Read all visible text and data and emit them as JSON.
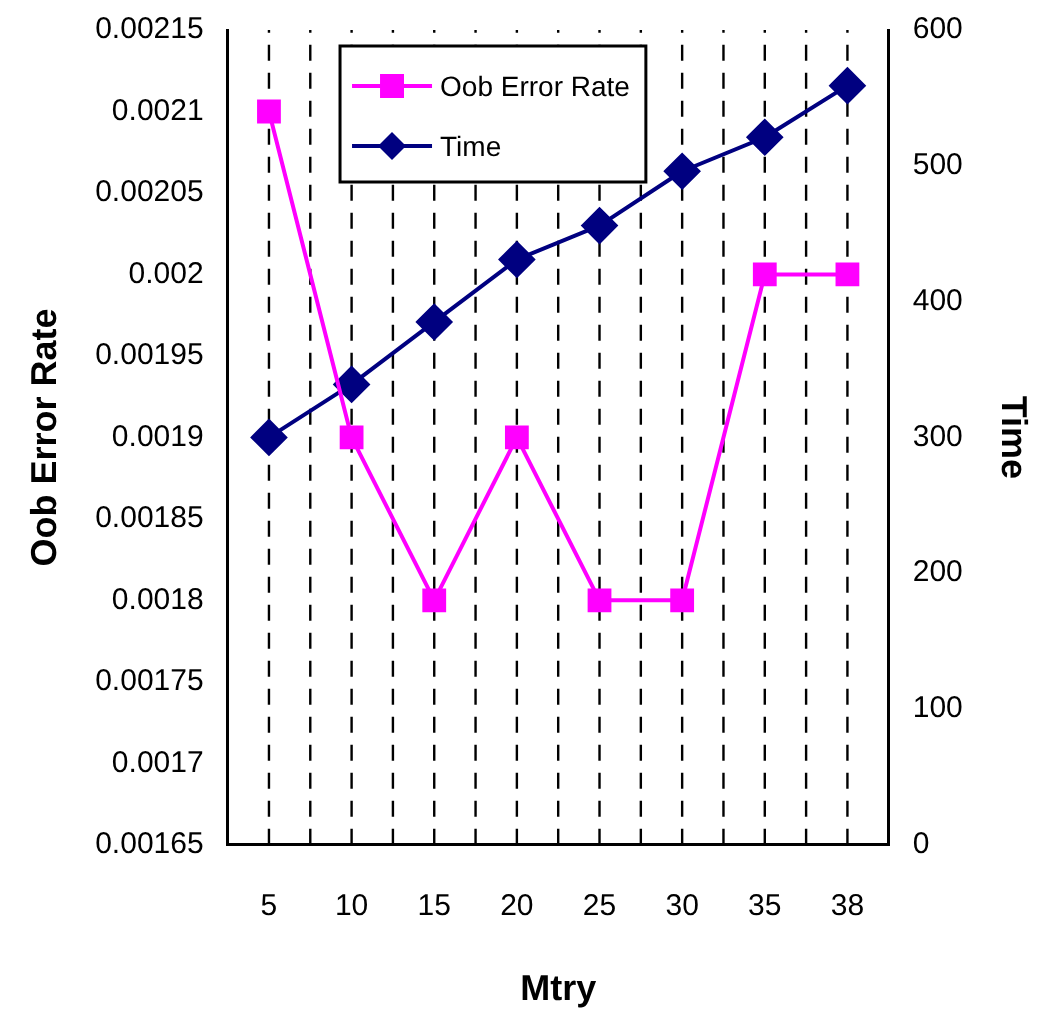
{
  "chart_data": {
    "type": "line",
    "xlabel": "Mtry",
    "ylabel": "Oob Error Rate",
    "y2label": "Time",
    "categories": [
      "5",
      "10",
      "15",
      "20",
      "25",
      "30",
      "35",
      "38"
    ],
    "series": [
      {
        "name": "Oob Error Rate",
        "color": "#ff00ff",
        "marker": "square",
        "values": [
          0.0021,
          0.0019,
          0.0018,
          0.0019,
          0.0018,
          0.0018,
          0.002,
          0.002
        ]
      },
      {
        "name": "Time",
        "color": "#000080",
        "marker": "diamond",
        "axis": "y2",
        "values": [
          300,
          339,
          385,
          431,
          456,
          496,
          521,
          559
        ]
      }
    ],
    "ylim": [
      0.00165,
      0.00215
    ],
    "yticks": [
      0.00165,
      0.0017,
      0.00175,
      0.0018,
      0.00185,
      0.0019,
      0.00195,
      0.002,
      0.00205,
      0.0021,
      0.00215
    ],
    "y2lim": [
      0,
      600
    ],
    "y2ticks": [
      0,
      100,
      200,
      300,
      400,
      500,
      600
    ],
    "grid": "x",
    "legend": "top"
  }
}
